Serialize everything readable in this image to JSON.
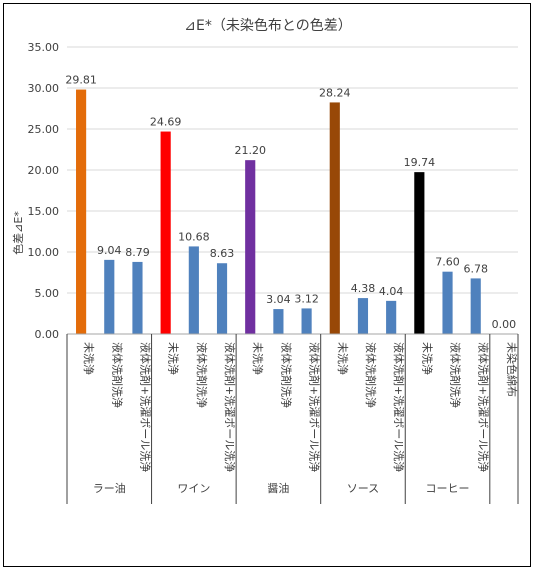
{
  "chart_data": {
    "type": "bar",
    "title": "⊿E*（未染色布との色差）",
    "ylabel": "色差⊿E*",
    "xlabel": "",
    "ylim": [
      0,
      35
    ],
    "yticks": [
      "0.00",
      "5.00",
      "10.00",
      "15.00",
      "20.00",
      "25.00",
      "30.00",
      "35.00"
    ],
    "grid": true,
    "legend": "none",
    "groups": [
      {
        "name": "ラー油",
        "categories": [
          "未洗浄",
          "液体洗剤洗浄",
          "液体洗剤+洗濯ボール洗浄"
        ],
        "values": [
          29.81,
          9.04,
          8.79
        ],
        "labels": [
          "29.81",
          "9.04",
          "8.79"
        ],
        "colors": [
          "#E36C0A",
          "#4F81BD",
          "#4F81BD"
        ]
      },
      {
        "name": "ワイン",
        "categories": [
          "未洗浄",
          "液体洗剤洗浄",
          "液体洗剤+洗濯ボール洗浄"
        ],
        "values": [
          24.69,
          10.68,
          8.63
        ],
        "labels": [
          "24.69",
          "10.68",
          "8.63"
        ],
        "colors": [
          "#FF0000",
          "#4F81BD",
          "#4F81BD"
        ]
      },
      {
        "name": "醤油",
        "categories": [
          "未洗浄",
          "液体洗剤洗浄",
          "液体洗剤+洗濯ボール洗浄"
        ],
        "values": [
          21.2,
          3.04,
          3.12
        ],
        "labels": [
          "21.20",
          "3.04",
          "3.12"
        ],
        "colors": [
          "#7030A0",
          "#4F81BD",
          "#4F81BD"
        ]
      },
      {
        "name": "ソース",
        "categories": [
          "未洗浄",
          "液体洗剤洗浄",
          "液体洗剤+洗濯ボール洗浄"
        ],
        "values": [
          28.24,
          4.38,
          4.04
        ],
        "labels": [
          "28.24",
          "4.38",
          "4.04"
        ],
        "colors": [
          "#984807",
          "#4F81BD",
          "#4F81BD"
        ]
      },
      {
        "name": "コーヒー",
        "categories": [
          "未洗浄",
          "液体洗剤洗浄",
          "液体洗剤+洗濯ボール洗浄"
        ],
        "values": [
          19.74,
          7.6,
          6.78
        ],
        "labels": [
          "19.74",
          "7.60",
          "6.78"
        ],
        "colors": [
          "#000000",
          "#4F81BD",
          "#4F81BD"
        ]
      },
      {
        "name": "",
        "categories": [
          "未染色綿布"
        ],
        "values": [
          0.0
        ],
        "labels": [
          "0.00"
        ],
        "colors": [
          "#4F81BD"
        ]
      }
    ]
  }
}
